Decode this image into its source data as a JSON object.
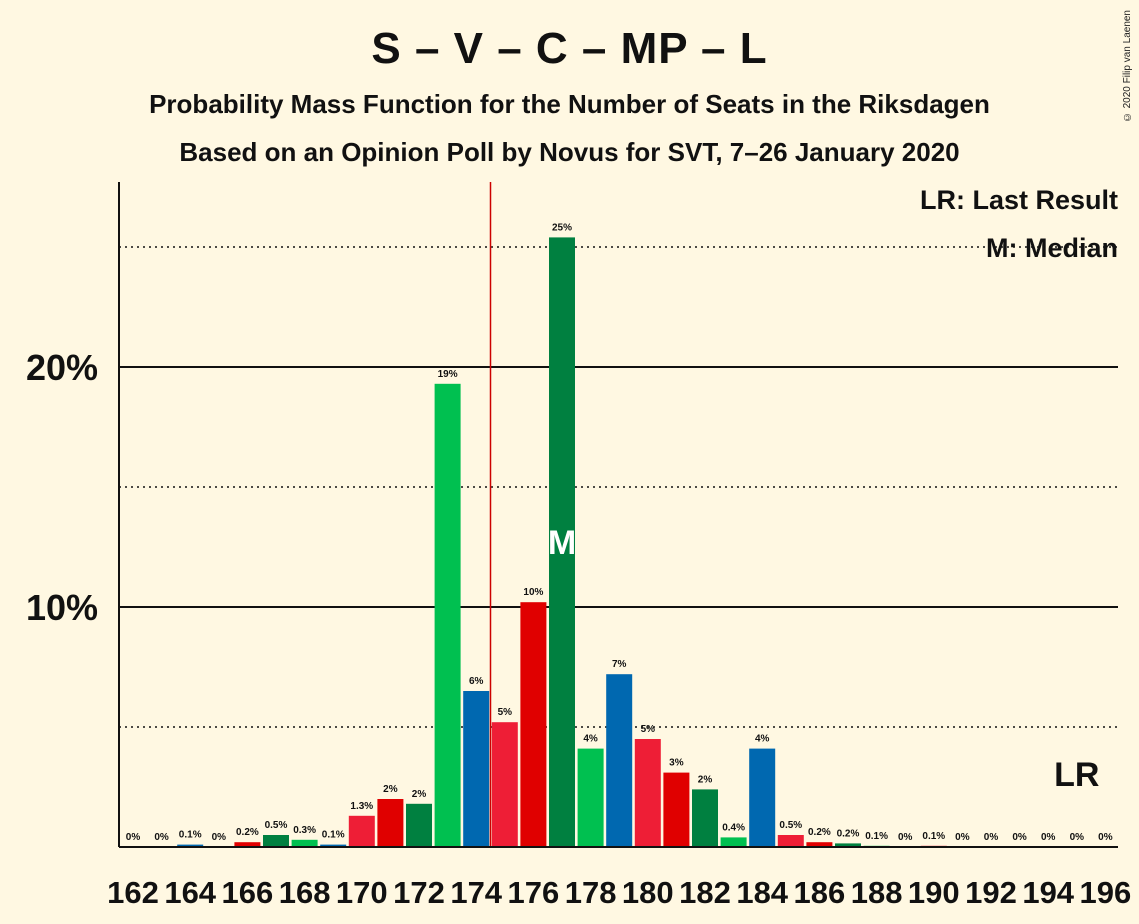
{
  "title": "S – V – C – MP – L",
  "subtitle1": "Probability Mass Function for the Number of Seats in the Riksdagen",
  "subtitle2": "Based on an Opinion Poll by Novus for SVT, 7–26 January 2020",
  "copyright": "© 2020 Filip van Laenen",
  "legend": {
    "lr": "LR: Last Result",
    "m": "M: Median"
  },
  "median_marker": "M",
  "lr_marker": "LR",
  "colors": {
    "background": "#FFF8E2",
    "green": "#00C050",
    "blue": "#0068B0",
    "red": "#EE1E36",
    "darkred": "#E00000",
    "darkgreen": "#008040",
    "lastresult": "#CC0000"
  },
  "chart_data": {
    "type": "bar",
    "x": [
      162,
      163,
      164,
      165,
      166,
      167,
      168,
      169,
      170,
      171,
      172,
      173,
      174,
      175,
      176,
      177,
      178,
      179,
      180,
      181,
      182,
      183,
      184,
      185,
      186,
      187,
      188,
      189,
      190,
      191,
      192,
      193,
      194,
      195,
      196
    ],
    "values": [
      0,
      0,
      0.1,
      0,
      0.2,
      0.5,
      0.3,
      0.1,
      1.3,
      2.0,
      1.8,
      19.3,
      6.5,
      5.2,
      10.2,
      25.4,
      4.1,
      7.2,
      4.5,
      3.1,
      2.4,
      0.4,
      4.1,
      0.5,
      0.2,
      0.15,
      0.05,
      0,
      0.05,
      0,
      0,
      0,
      0,
      0,
      0
    ],
    "labels": [
      "0%",
      "0%",
      "0.1%",
      "0%",
      "0.2%",
      "0.5%",
      "0.3%",
      "0.1%",
      "1.3%",
      "2%",
      "2%",
      "19%",
      "6%",
      "5%",
      "10%",
      "25%",
      "4%",
      "7%",
      "5%",
      "3%",
      "2%",
      "0.4%",
      "4%",
      "0.5%",
      "0.2%",
      "0.2%",
      "0.1%",
      "0%",
      "0.1%",
      "0%",
      "0%",
      "0%",
      "0%",
      "0%",
      "0%"
    ],
    "bar_colors": [
      "green",
      "blue",
      "blue",
      "red",
      "darkred",
      "darkgreen",
      "green",
      "blue",
      "red",
      "darkred",
      "darkgreen",
      "green",
      "blue",
      "red",
      "darkred",
      "darkgreen",
      "green",
      "blue",
      "red",
      "darkred",
      "darkgreen",
      "green",
      "blue",
      "red",
      "darkred",
      "darkgreen",
      "green",
      "blue",
      "red",
      "darkred",
      "darkgreen",
      "green",
      "blue",
      "red",
      "darkred"
    ],
    "x_tick_labels": [
      "162",
      "164",
      "166",
      "168",
      "170",
      "172",
      "174",
      "176",
      "178",
      "180",
      "182",
      "184",
      "186",
      "188",
      "190",
      "192",
      "194",
      "196"
    ],
    "y_ticks": [
      {
        "value": 10,
        "label": "10%"
      },
      {
        "value": 20,
        "label": "20%"
      }
    ],
    "dotted_gridlines": [
      5,
      15,
      25
    ],
    "ylim": [
      0,
      27.5
    ],
    "median": 177,
    "last_result": 174.5,
    "lr_label_at": 195
  }
}
